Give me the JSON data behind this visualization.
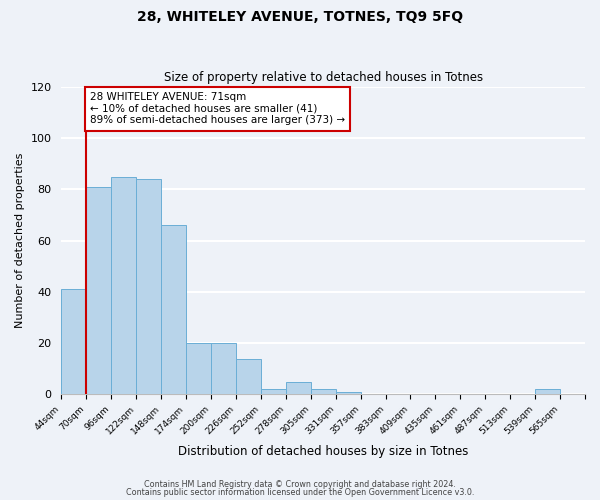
{
  "title1": "28, WHITELEY AVENUE, TOTNES, TQ9 5FQ",
  "title2": "Size of property relative to detached houses in Totnes",
  "xlabel": "Distribution of detached houses by size in Totnes",
  "ylabel": "Number of detached properties",
  "bin_labels": [
    "44sqm",
    "70sqm",
    "96sqm",
    "122sqm",
    "148sqm",
    "174sqm",
    "200sqm",
    "226sqm",
    "252sqm",
    "278sqm",
    "305sqm",
    "331sqm",
    "357sqm",
    "383sqm",
    "409sqm",
    "435sqm",
    "461sqm",
    "487sqm",
    "513sqm",
    "539sqm",
    "565sqm"
  ],
  "bar_values": [
    41,
    81,
    85,
    84,
    66,
    20,
    20,
    14,
    2,
    5,
    2,
    1,
    0,
    0,
    0,
    0,
    0,
    0,
    0,
    2,
    0
  ],
  "bar_color": "#b8d4ea",
  "bar_edge_color": "#6aaed6",
  "ylim": [
    0,
    120
  ],
  "yticks": [
    0,
    20,
    40,
    60,
    80,
    100,
    120
  ],
  "footer1": "Contains HM Land Registry data © Crown copyright and database right 2024.",
  "footer2": "Contains public sector information licensed under the Open Government Licence v3.0.",
  "background_color": "#eef2f8",
  "grid_color": "#ffffff",
  "annotation_box_color": "#ffffff",
  "annotation_box_edge": "#cc0000",
  "red_line_x": 1,
  "ann_line1": "28 WHITELEY AVENUE: 71sqm",
  "ann_line2": "← 10% of detached houses are smaller (41)",
  "ann_line3": "89% of semi-detached houses are larger (373) →"
}
